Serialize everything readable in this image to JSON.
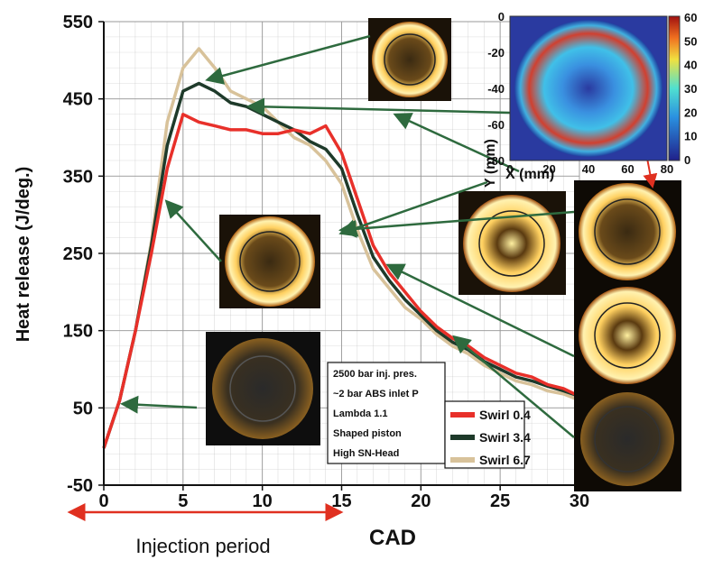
{
  "chart_data": {
    "type": "line",
    "xlabel": "CAD",
    "ylabel": "Heat release (J/deg.)",
    "x": [
      0,
      1,
      2,
      3,
      4,
      5,
      6,
      7,
      8,
      9,
      10,
      11,
      12,
      13,
      14,
      15,
      16,
      17,
      18,
      19,
      20,
      21,
      22,
      23,
      24,
      25,
      26,
      27,
      28,
      29,
      30
    ],
    "series": [
      {
        "name": "Swirl 0.4",
        "color": "#e8302a",
        "values": [
          -2,
          60,
          150,
          250,
          360,
          430,
          420,
          415,
          410,
          410,
          405,
          405,
          410,
          405,
          415,
          380,
          320,
          260,
          225,
          200,
          175,
          155,
          140,
          130,
          115,
          105,
          95,
          90,
          80,
          75,
          65
        ]
      },
      {
        "name": "Swirl 3.4",
        "color": "#1e3a2a",
        "values": [
          -2,
          60,
          150,
          260,
          390,
          460,
          470,
          460,
          445,
          440,
          430,
          420,
          410,
          395,
          385,
          360,
          300,
          245,
          215,
          190,
          170,
          150,
          135,
          125,
          110,
          100,
          90,
          85,
          78,
          72,
          65
        ]
      },
      {
        "name": "Swirl 6.7",
        "color": "#d8c29a",
        "values": [
          -2,
          60,
          150,
          265,
          420,
          490,
          515,
          490,
          460,
          450,
          440,
          420,
          400,
          390,
          370,
          340,
          280,
          230,
          205,
          180,
          165,
          145,
          130,
          120,
          105,
          95,
          85,
          80,
          72,
          68,
          60
        ]
      }
    ],
    "xlim": [
      0,
      30
    ],
    "ylim": [
      -50,
      550
    ],
    "xticks": [
      0,
      5,
      10,
      15,
      20,
      25,
      30
    ],
    "yticks": [
      -50,
      50,
      150,
      250,
      350,
      450,
      550
    ],
    "grid": true,
    "annotation_lines": [
      "2500 bar inj. pres.",
      "~2 bar ABS inlet P",
      "Lambda 1.1",
      "Shaped piston",
      "High SN-Head"
    ],
    "period_label": "Injection period",
    "inset": {
      "xlabel": "X (mm)",
      "ylabel": "Y (mm)",
      "xticks": [
        0,
        20,
        40,
        60,
        80
      ],
      "yticks": [
        0,
        -20,
        -40,
        -60,
        -80
      ],
      "cticks": [
        0,
        10,
        20,
        30,
        40,
        50,
        60
      ]
    }
  }
}
